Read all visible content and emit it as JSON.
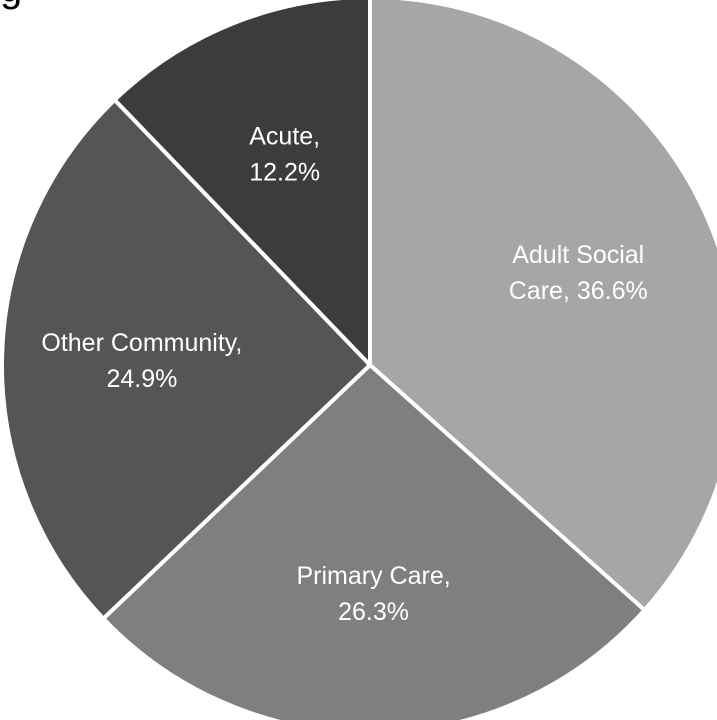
{
  "chart_data": {
    "type": "pie",
    "title": "g",
    "start_angle_deg": 0,
    "direction": "clockwise",
    "legend": "none",
    "label_format": "category, percent",
    "slices": [
      {
        "label": "Adult Social Care",
        "value": 36.6,
        "percent_label": "36.6%",
        "label_lines": [
          "Adult Social",
          "Care, 36.6%"
        ],
        "color": "#a6a6a6",
        "label_color": "#ffffff"
      },
      {
        "label": "Primary Care",
        "value": 26.3,
        "percent_label": "26.3%",
        "label_lines": [
          "Primary Care,",
          "26.3%"
        ],
        "color": "#7f7f7f",
        "label_color": "#ffffff"
      },
      {
        "label": "Other Community",
        "value": 24.9,
        "percent_label": "24.9%",
        "label_lines": [
          "Other Community,",
          "24.9%"
        ],
        "color": "#555555",
        "label_color": "#ffffff"
      },
      {
        "label": "Acute",
        "value": 12.2,
        "percent_label": "12.2%",
        "label_lines": [
          "Acute,",
          "12.2%"
        ],
        "color": "#3c3c3c",
        "label_color": "#ffffff"
      }
    ],
    "separator_color": "#ffffff",
    "outer_edge_color": "#d9d9d9"
  }
}
